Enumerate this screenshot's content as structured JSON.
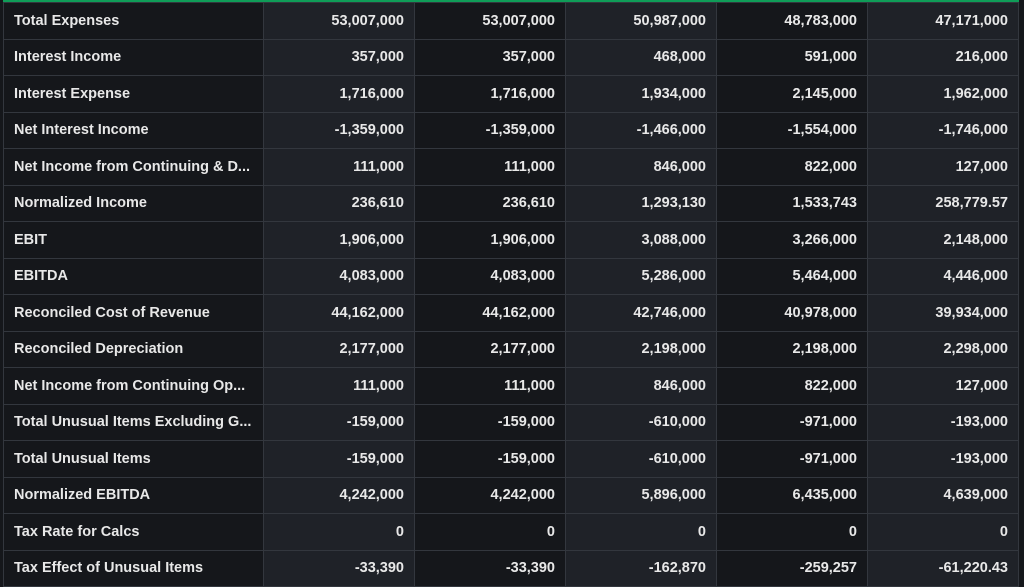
{
  "accent_color": "#0f9d58",
  "rows": [
    {
      "label": "Total Expenses",
      "values": [
        "53,007,000",
        "53,007,000",
        "50,987,000",
        "48,783,000",
        "47,171,000"
      ]
    },
    {
      "label": "Interest Income",
      "values": [
        "357,000",
        "357,000",
        "468,000",
        "591,000",
        "216,000"
      ]
    },
    {
      "label": "Interest Expense",
      "values": [
        "1,716,000",
        "1,716,000",
        "1,934,000",
        "2,145,000",
        "1,962,000"
      ]
    },
    {
      "label": "Net Interest Income",
      "values": [
        "-1,359,000",
        "-1,359,000",
        "-1,466,000",
        "-1,554,000",
        "-1,746,000"
      ]
    },
    {
      "label": "Net Income from Continuing & D...",
      "values": [
        "111,000",
        "111,000",
        "846,000",
        "822,000",
        "127,000"
      ]
    },
    {
      "label": "Normalized Income",
      "values": [
        "236,610",
        "236,610",
        "1,293,130",
        "1,533,743",
        "258,779.57"
      ]
    },
    {
      "label": "EBIT",
      "values": [
        "1,906,000",
        "1,906,000",
        "3,088,000",
        "3,266,000",
        "2,148,000"
      ]
    },
    {
      "label": "EBITDA",
      "values": [
        "4,083,000",
        "4,083,000",
        "5,286,000",
        "5,464,000",
        "4,446,000"
      ]
    },
    {
      "label": "Reconciled Cost of Revenue",
      "values": [
        "44,162,000",
        "44,162,000",
        "42,746,000",
        "40,978,000",
        "39,934,000"
      ]
    },
    {
      "label": "Reconciled Depreciation",
      "values": [
        "2,177,000",
        "2,177,000",
        "2,198,000",
        "2,198,000",
        "2,298,000"
      ]
    },
    {
      "label": "Net Income from Continuing Op...",
      "values": [
        "111,000",
        "111,000",
        "846,000",
        "822,000",
        "127,000"
      ]
    },
    {
      "label": "Total Unusual Items Excluding G...",
      "values": [
        "-159,000",
        "-159,000",
        "-610,000",
        "-971,000",
        "-193,000"
      ]
    },
    {
      "label": "Total Unusual Items",
      "values": [
        "-159,000",
        "-159,000",
        "-610,000",
        "-971,000",
        "-193,000"
      ]
    },
    {
      "label": "Normalized EBITDA",
      "values": [
        "4,242,000",
        "4,242,000",
        "5,896,000",
        "6,435,000",
        "4,639,000"
      ]
    },
    {
      "label": "Tax Rate for Calcs",
      "values": [
        "0",
        "0",
        "0",
        "0",
        "0"
      ]
    },
    {
      "label": "Tax Effect of Unusual Items",
      "values": [
        "-33,390",
        "-33,390",
        "-162,870",
        "-259,257",
        "-61,220.43"
      ]
    }
  ]
}
